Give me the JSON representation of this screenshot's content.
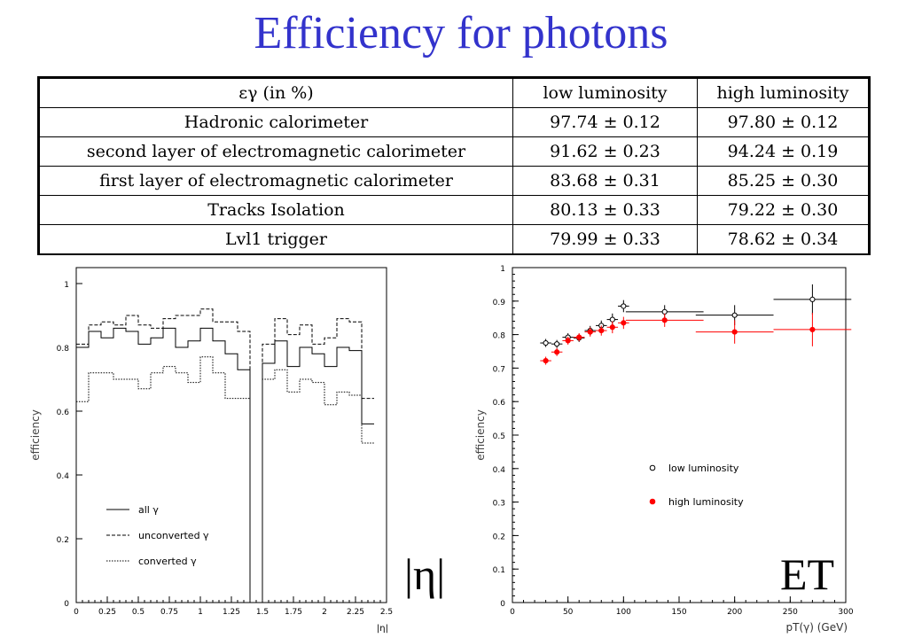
{
  "title": "Efficiency for photons",
  "table": {
    "header": [
      "εγ (in %)",
      "low luminosity",
      "high luminosity"
    ],
    "rows": [
      [
        "Hadronic calorimeter",
        "97.74 ± 0.12",
        "97.80 ± 0.12"
      ],
      [
        "second layer of electromagnetic calorimeter",
        "91.62 ± 0.23",
        "94.24 ± 0.19"
      ],
      [
        "first layer of electromagnetic calorimeter",
        "83.68 ± 0.31",
        "85.25 ± 0.30"
      ],
      [
        "Tracks Isolation",
        "80.13 ± 0.33",
        "79.22 ± 0.30"
      ],
      [
        "Lvl1 trigger",
        "79.99 ± 0.33",
        "78.62 ± 0.34"
      ]
    ]
  },
  "chart_data": [
    {
      "type": "line",
      "subtype": "step-histogram",
      "xlabel": "|η|",
      "ylabel": "efficiency",
      "xlim": [
        0,
        2.5
      ],
      "ylim": [
        0,
        1.05
      ],
      "xticks": [
        "0",
        "0.25",
        "0.5",
        "0.75",
        "1",
        "1.25",
        "1.5",
        "1.75",
        "2",
        "2.25",
        "2.5"
      ],
      "yticks": [
        "0",
        "0.2",
        "0.4",
        "0.6",
        "0.8",
        "1"
      ],
      "x_edges": [
        0,
        0.1,
        0.2,
        0.3,
        0.4,
        0.5,
        0.6,
        0.7,
        0.8,
        0.9,
        1.0,
        1.1,
        1.2,
        1.3,
        1.4,
        1.5,
        1.6,
        1.7,
        1.8,
        1.9,
        2.0,
        2.1,
        2.2,
        2.3,
        2.4
      ],
      "legend_position": "bottom-left",
      "overlay_label": "|η|",
      "series": [
        {
          "name": "all γ",
          "style": "solid",
          "values": [
            0.8,
            0.85,
            0.83,
            0.86,
            0.85,
            0.81,
            0.83,
            0.86,
            0.8,
            0.82,
            0.86,
            0.82,
            0.78,
            0.73,
            0.0,
            0.75,
            0.82,
            0.74,
            0.8,
            0.78,
            0.74,
            0.8,
            0.79,
            0.56
          ]
        },
        {
          "name": "unconverted γ",
          "style": "dashed",
          "values": [
            0.81,
            0.87,
            0.88,
            0.87,
            0.9,
            0.87,
            0.86,
            0.89,
            0.9,
            0.9,
            0.92,
            0.88,
            0.88,
            0.85,
            0.0,
            0.81,
            0.89,
            0.84,
            0.87,
            0.81,
            0.83,
            0.89,
            0.88,
            0.64
          ]
        },
        {
          "name": "converted γ",
          "style": "dotted",
          "values": [
            0.63,
            0.72,
            0.72,
            0.7,
            0.7,
            0.67,
            0.72,
            0.74,
            0.72,
            0.69,
            0.77,
            0.72,
            0.64,
            0.64,
            0.0,
            0.7,
            0.73,
            0.66,
            0.7,
            0.69,
            0.62,
            0.66,
            0.65,
            0.5
          ]
        }
      ]
    },
    {
      "type": "scatter",
      "xlabel": "pT(γ) (GeV)",
      "ylabel": "efficiency",
      "xlim": [
        0,
        300
      ],
      "ylim": [
        0,
        1.0
      ],
      "xticks": [
        "0",
        "50",
        "100",
        "150",
        "200",
        "250",
        "300"
      ],
      "yticks": [
        "0",
        "0.1",
        "0.2",
        "0.3",
        "0.4",
        "0.5",
        "0.6",
        "0.7",
        "0.8",
        "0.9",
        "1"
      ],
      "legend_position": "center-right",
      "overlay_label": "ET",
      "series": [
        {
          "name": "low luminosity",
          "color": "#000000",
          "marker": "open-circle",
          "x": [
            30,
            40,
            50,
            60,
            70,
            80,
            90,
            100,
            137,
            200,
            270
          ],
          "y": [
            0.775,
            0.772,
            0.792,
            0.79,
            0.812,
            0.827,
            0.845,
            0.885,
            0.868,
            0.858,
            0.905
          ],
          "xerr": [
            5,
            5,
            5,
            5,
            5,
            5,
            5,
            5,
            35,
            35,
            35
          ],
          "yerr": [
            0.012,
            0.012,
            0.012,
            0.012,
            0.014,
            0.015,
            0.018,
            0.018,
            0.02,
            0.03,
            0.045
          ]
        },
        {
          "name": "high luminosity",
          "color": "#ff0000",
          "marker": "filled-circle",
          "x": [
            30,
            40,
            50,
            60,
            70,
            80,
            90,
            100,
            137,
            200,
            270
          ],
          "y": [
            0.722,
            0.748,
            0.782,
            0.792,
            0.808,
            0.812,
            0.822,
            0.835,
            0.843,
            0.808,
            0.815
          ],
          "xerr": [
            5,
            5,
            5,
            5,
            5,
            5,
            5,
            5,
            35,
            35,
            35
          ],
          "yerr": [
            0.012,
            0.012,
            0.012,
            0.012,
            0.014,
            0.015,
            0.018,
            0.018,
            0.02,
            0.035,
            0.05
          ]
        }
      ]
    }
  ]
}
